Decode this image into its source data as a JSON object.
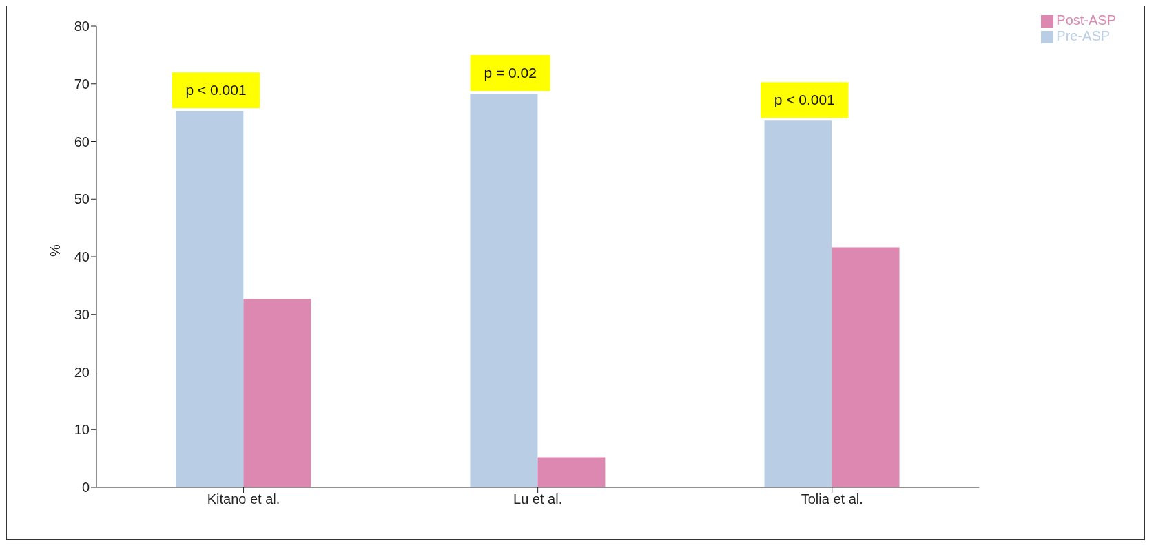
{
  "chart_data": {
    "type": "bar",
    "ylabel": "%",
    "categories": [
      "Kitano et al.",
      "Lu et al.",
      "Tolia et al."
    ],
    "series": [
      {
        "name": "Pre-ASP",
        "color": "#b9cde5",
        "values": [
          65.3,
          68.3,
          63.6
        ]
      },
      {
        "name": "Post-ASP",
        "color": "#dd88b0",
        "values": [
          32.7,
          5.2,
          41.6
        ]
      }
    ],
    "ylim": [
      0,
      80
    ],
    "yticks": [
      0,
      10,
      20,
      30,
      40,
      50,
      60,
      70,
      80
    ],
    "grid": false,
    "legend": "top right",
    "annotations": [
      {
        "text": "p < 0.001",
        "x": "Kitano et al.",
        "y": 65.3
      },
      {
        "text": "p = 0.02",
        "x": "Lu et al.",
        "y": 68.3
      },
      {
        "text": "p < 0.001",
        "x": "Tolia et al.",
        "y": 63.6
      }
    ]
  }
}
